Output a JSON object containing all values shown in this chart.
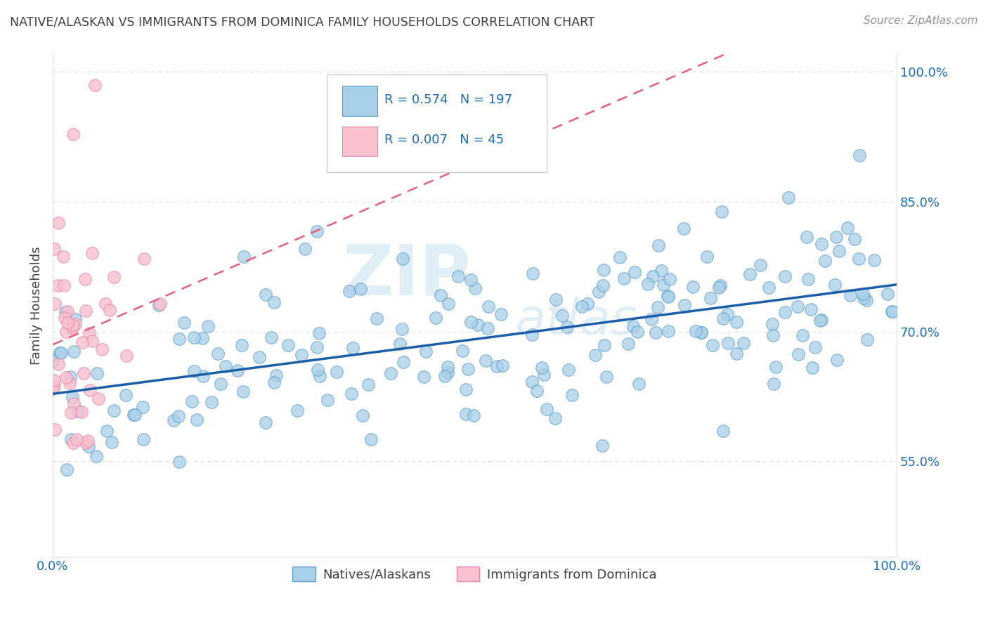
{
  "title": "NATIVE/ALASKAN VS IMMIGRANTS FROM DOMINICA FAMILY HOUSEHOLDS CORRELATION CHART",
  "source": "Source: ZipAtlas.com",
  "ylabel": "Family Households",
  "blue_R": 0.574,
  "blue_N": 197,
  "pink_R": 0.007,
  "pink_N": 45,
  "legend1": "Natives/Alaskans",
  "legend2": "Immigrants from Dominica",
  "blue_color": "#a8cfe8",
  "pink_color": "#f9c0d0",
  "blue_edge_color": "#5b9dc9",
  "pink_edge_color": "#e888a8",
  "blue_line_color": "#1a5fa8",
  "pink_line_color": "#e06080",
  "title_color": "#404040",
  "source_color": "#909090",
  "legend_value_color": "#1a6bb5",
  "background_color": "#ffffff",
  "grid_color": "#dddddd",
  "xlim": [
    0,
    1
  ],
  "ylim": [
    0.44,
    1.02
  ],
  "yticks": [
    0.55,
    0.7,
    0.85,
    1.0
  ],
  "ytick_labels": [
    "55.0%",
    "70.0%",
    "85.0%",
    "100.0%"
  ],
  "xticks": [
    0.0,
    1.0
  ],
  "xtick_labels": [
    "0.0%",
    "100.0%"
  ],
  "watermark_zip": "ZIP",
  "watermark_atlas": "atlas"
}
